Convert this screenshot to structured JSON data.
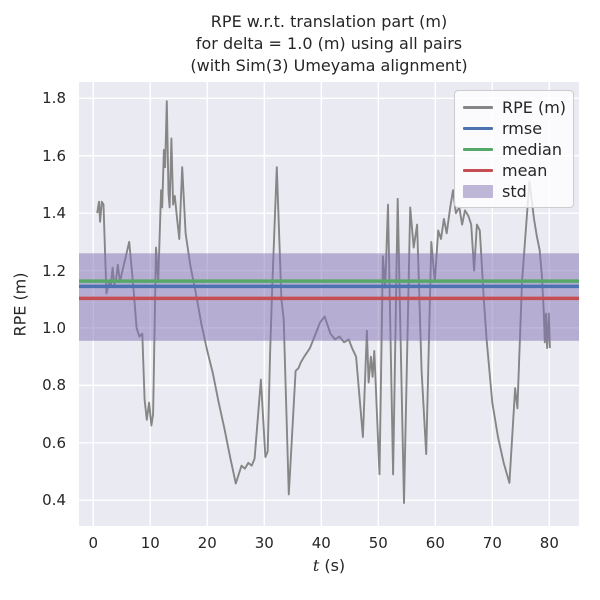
{
  "title": {
    "line1": "RPE w.r.t. translation part (m)",
    "line2": "for delta = 1.0 (m) using all pairs",
    "line3": "(with Sim(3) Umeyama alignment)"
  },
  "xlabel": {
    "var": "t",
    "unit": " (s)"
  },
  "colors": {
    "figure_bg": "#ffffff",
    "axes_bg": "#eaeaf2",
    "grid": "#ffffff",
    "text": "#262626",
    "rpe_line": "#868686",
    "rmse": "#4c72b0",
    "median": "#55a868",
    "mean": "#c44e52",
    "std_band": "#8172b2"
  },
  "legend": {
    "entries": [
      {
        "label": "RPE (m)",
        "color": "#868686",
        "kind": "line"
      },
      {
        "label": "rmse",
        "color": "#4c72b0",
        "kind": "line"
      },
      {
        "label": "median",
        "color": "#55a868",
        "kind": "line"
      },
      {
        "label": "mean",
        "color": "#c44e52",
        "kind": "line"
      },
      {
        "label": "std",
        "color": "rgba(129,114,178,0.5)",
        "kind": "patch"
      }
    ]
  },
  "chart_data": {
    "type": "line",
    "title": "RPE w.r.t. translation part (m) for delta = 1.0 (m) using all pairs (with Sim(3) Umeyama alignment)",
    "xlabel": "t (s)",
    "ylabel": "RPE (m)",
    "grid": true,
    "legend_position": "upper right",
    "xlim": [
      -2.5,
      85.2
    ],
    "ylim": [
      0.31,
      1.857
    ],
    "x_ticks": [
      0,
      10,
      20,
      30,
      40,
      50,
      60,
      70,
      80
    ],
    "y_ticks": [
      0.4,
      0.6,
      0.8,
      1.0,
      1.2,
      1.4,
      1.6,
      1.8
    ],
    "stats": {
      "rmse": 1.145,
      "median": 1.163,
      "mean": 1.103,
      "std": 0.152
    },
    "series": [
      {
        "name": "RPE (m)",
        "kind": "line",
        "color": "#868686",
        "points": [
          [
            0.7,
            1.4
          ],
          [
            1.0,
            1.44
          ],
          [
            1.2,
            1.37
          ],
          [
            1.5,
            1.44
          ],
          [
            1.8,
            1.43
          ],
          [
            2.3,
            1.12
          ],
          [
            2.8,
            1.16
          ],
          [
            3.1,
            1.15
          ],
          [
            3.4,
            1.21
          ],
          [
            3.7,
            1.15
          ],
          [
            4.0,
            1.17
          ],
          [
            4.3,
            1.22
          ],
          [
            4.7,
            1.16
          ],
          [
            5.0,
            1.19
          ],
          [
            5.6,
            1.24
          ],
          [
            6.3,
            1.3
          ],
          [
            7.0,
            1.15
          ],
          [
            7.6,
            1.0
          ],
          [
            8.1,
            0.97
          ],
          [
            8.6,
            0.98
          ],
          [
            9.0,
            0.75
          ],
          [
            9.4,
            0.68
          ],
          [
            9.8,
            0.74
          ],
          [
            10.2,
            0.66
          ],
          [
            10.5,
            0.7
          ],
          [
            11.0,
            1.28
          ],
          [
            11.4,
            1.16
          ],
          [
            11.9,
            1.48
          ],
          [
            12.1,
            1.42
          ],
          [
            12.4,
            1.62
          ],
          [
            12.6,
            1.56
          ],
          [
            12.9,
            1.79
          ],
          [
            13.2,
            1.47
          ],
          [
            13.4,
            1.42
          ],
          [
            13.7,
            1.66
          ],
          [
            14.0,
            1.43
          ],
          [
            14.3,
            1.46
          ],
          [
            14.7,
            1.38
          ],
          [
            15.1,
            1.31
          ],
          [
            15.6,
            1.56
          ],
          [
            16.2,
            1.33
          ],
          [
            17.0,
            1.22
          ],
          [
            18.0,
            1.12
          ],
          [
            19.0,
            1.01
          ],
          [
            20.0,
            0.92
          ],
          [
            21.0,
            0.84
          ],
          [
            22.0,
            0.74
          ],
          [
            23.0,
            0.65
          ],
          [
            24.0,
            0.55
          ],
          [
            25.0,
            0.458
          ],
          [
            26.0,
            0.52
          ],
          [
            26.6,
            0.51
          ],
          [
            27.2,
            0.53
          ],
          [
            27.8,
            0.52
          ],
          [
            28.3,
            0.545
          ],
          [
            29.4,
            0.82
          ],
          [
            30.2,
            0.55
          ],
          [
            30.6,
            0.57
          ],
          [
            31.0,
            0.9
          ],
          [
            31.4,
            1.15
          ],
          [
            32.2,
            1.56
          ],
          [
            33.0,
            1.1
          ],
          [
            33.4,
            1.03
          ],
          [
            34.3,
            0.42
          ],
          [
            35.5,
            0.85
          ],
          [
            36.0,
            0.86
          ],
          [
            36.4,
            0.88
          ],
          [
            37.0,
            0.9
          ],
          [
            38.0,
            0.93
          ],
          [
            38.8,
            0.97
          ],
          [
            39.8,
            1.02
          ],
          [
            40.6,
            1.04
          ],
          [
            41.6,
            0.98
          ],
          [
            42.4,
            0.96
          ],
          [
            43.2,
            0.97
          ],
          [
            44.0,
            0.95
          ],
          [
            44.8,
            0.96
          ],
          [
            45.4,
            0.93
          ],
          [
            46.1,
            0.9
          ],
          [
            47.3,
            0.62
          ],
          [
            48.0,
            0.99
          ],
          [
            48.3,
            0.81
          ],
          [
            48.7,
            0.9
          ],
          [
            49.0,
            0.83
          ],
          [
            49.3,
            0.92
          ],
          [
            50.2,
            0.49
          ],
          [
            50.8,
            1.25
          ],
          [
            51.2,
            1.14
          ],
          [
            51.7,
            1.43
          ],
          [
            52.6,
            0.49
          ],
          [
            53.4,
            1.45
          ],
          [
            54.5,
            0.39
          ],
          [
            55.6,
            1.42
          ],
          [
            56.2,
            1.28
          ],
          [
            56.8,
            1.36
          ],
          [
            57.6,
            0.85
          ],
          [
            58.4,
            0.56
          ],
          [
            59.3,
            1.3
          ],
          [
            59.9,
            1.16
          ],
          [
            60.5,
            1.34
          ],
          [
            61.0,
            1.31
          ],
          [
            61.5,
            1.38
          ],
          [
            62.0,
            1.33
          ],
          [
            62.6,
            1.42
          ],
          [
            63.1,
            1.48
          ],
          [
            63.6,
            1.4
          ],
          [
            64.2,
            1.42
          ],
          [
            64.7,
            1.36
          ],
          [
            65.2,
            1.41
          ],
          [
            65.8,
            1.39
          ],
          [
            66.3,
            1.36
          ],
          [
            66.8,
            1.2
          ],
          [
            67.3,
            1.36
          ],
          [
            67.8,
            1.34
          ],
          [
            68.5,
            1.1
          ],
          [
            69.0,
            0.96
          ],
          [
            70.0,
            0.74
          ],
          [
            71.0,
            0.62
          ],
          [
            72.0,
            0.53
          ],
          [
            73.0,
            0.46
          ],
          [
            73.7,
            0.69
          ],
          [
            74.0,
            0.79
          ],
          [
            74.4,
            0.72
          ],
          [
            75.2,
            1.16
          ],
          [
            76.5,
            1.51
          ],
          [
            77.3,
            1.38
          ],
          [
            77.8,
            1.32
          ],
          [
            78.3,
            1.27
          ],
          [
            78.7,
            1.18
          ],
          [
            79.0,
            1.06
          ],
          [
            79.2,
            0.95
          ],
          [
            79.4,
            1.05
          ],
          [
            79.6,
            0.93
          ],
          [
            79.9,
            1.05
          ],
          [
            80.1,
            0.93
          ]
        ]
      },
      {
        "name": "std",
        "kind": "band",
        "color": "rgba(129,114,178,0.5)",
        "range": [
          0.955,
          1.26
        ]
      },
      {
        "name": "rmse",
        "kind": "hline",
        "color": "#4c72b0",
        "value": 1.145
      },
      {
        "name": "median",
        "kind": "hline",
        "color": "#55a868",
        "value": 1.163
      },
      {
        "name": "mean",
        "kind": "hline",
        "color": "#c44e52",
        "value": 1.103
      }
    ]
  }
}
